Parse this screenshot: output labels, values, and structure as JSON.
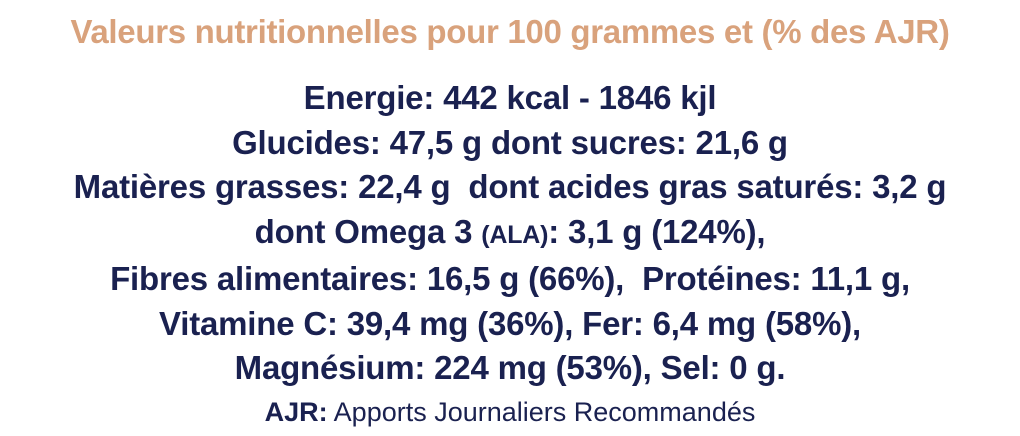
{
  "colors": {
    "title": "#d9a27c",
    "text": "#1a2150",
    "background": "#ffffff"
  },
  "title": "Valeurs nutritionnelles pour 100 grammes et (% des AJR)",
  "lines": {
    "energy": "Energie: 442 kcal - 1846 kjl",
    "carbs": "Glucides: 47,5 g dont sucres: 21,6 g",
    "fats": "Matières grasses: 22,4 g  dont acides gras saturés: 3,2 g",
    "omega_prefix": "dont Omega 3 ",
    "omega_abbrev": "(ALA)",
    "omega_suffix": ": 3,1 g (124%),",
    "fibres": "Fibres alimentaires: 16,5 g (66%),  Protéines: 11,1 g,",
    "vitamin": "Vitamine C: 39,4 mg (36%), Fer: 6,4 mg (58%),",
    "magnesium": "Magnésium: 224 mg (53%), Sel: 0 g."
  },
  "footer": {
    "label": "AJR:",
    "text": " Apports Journaliers Recommandés"
  }
}
